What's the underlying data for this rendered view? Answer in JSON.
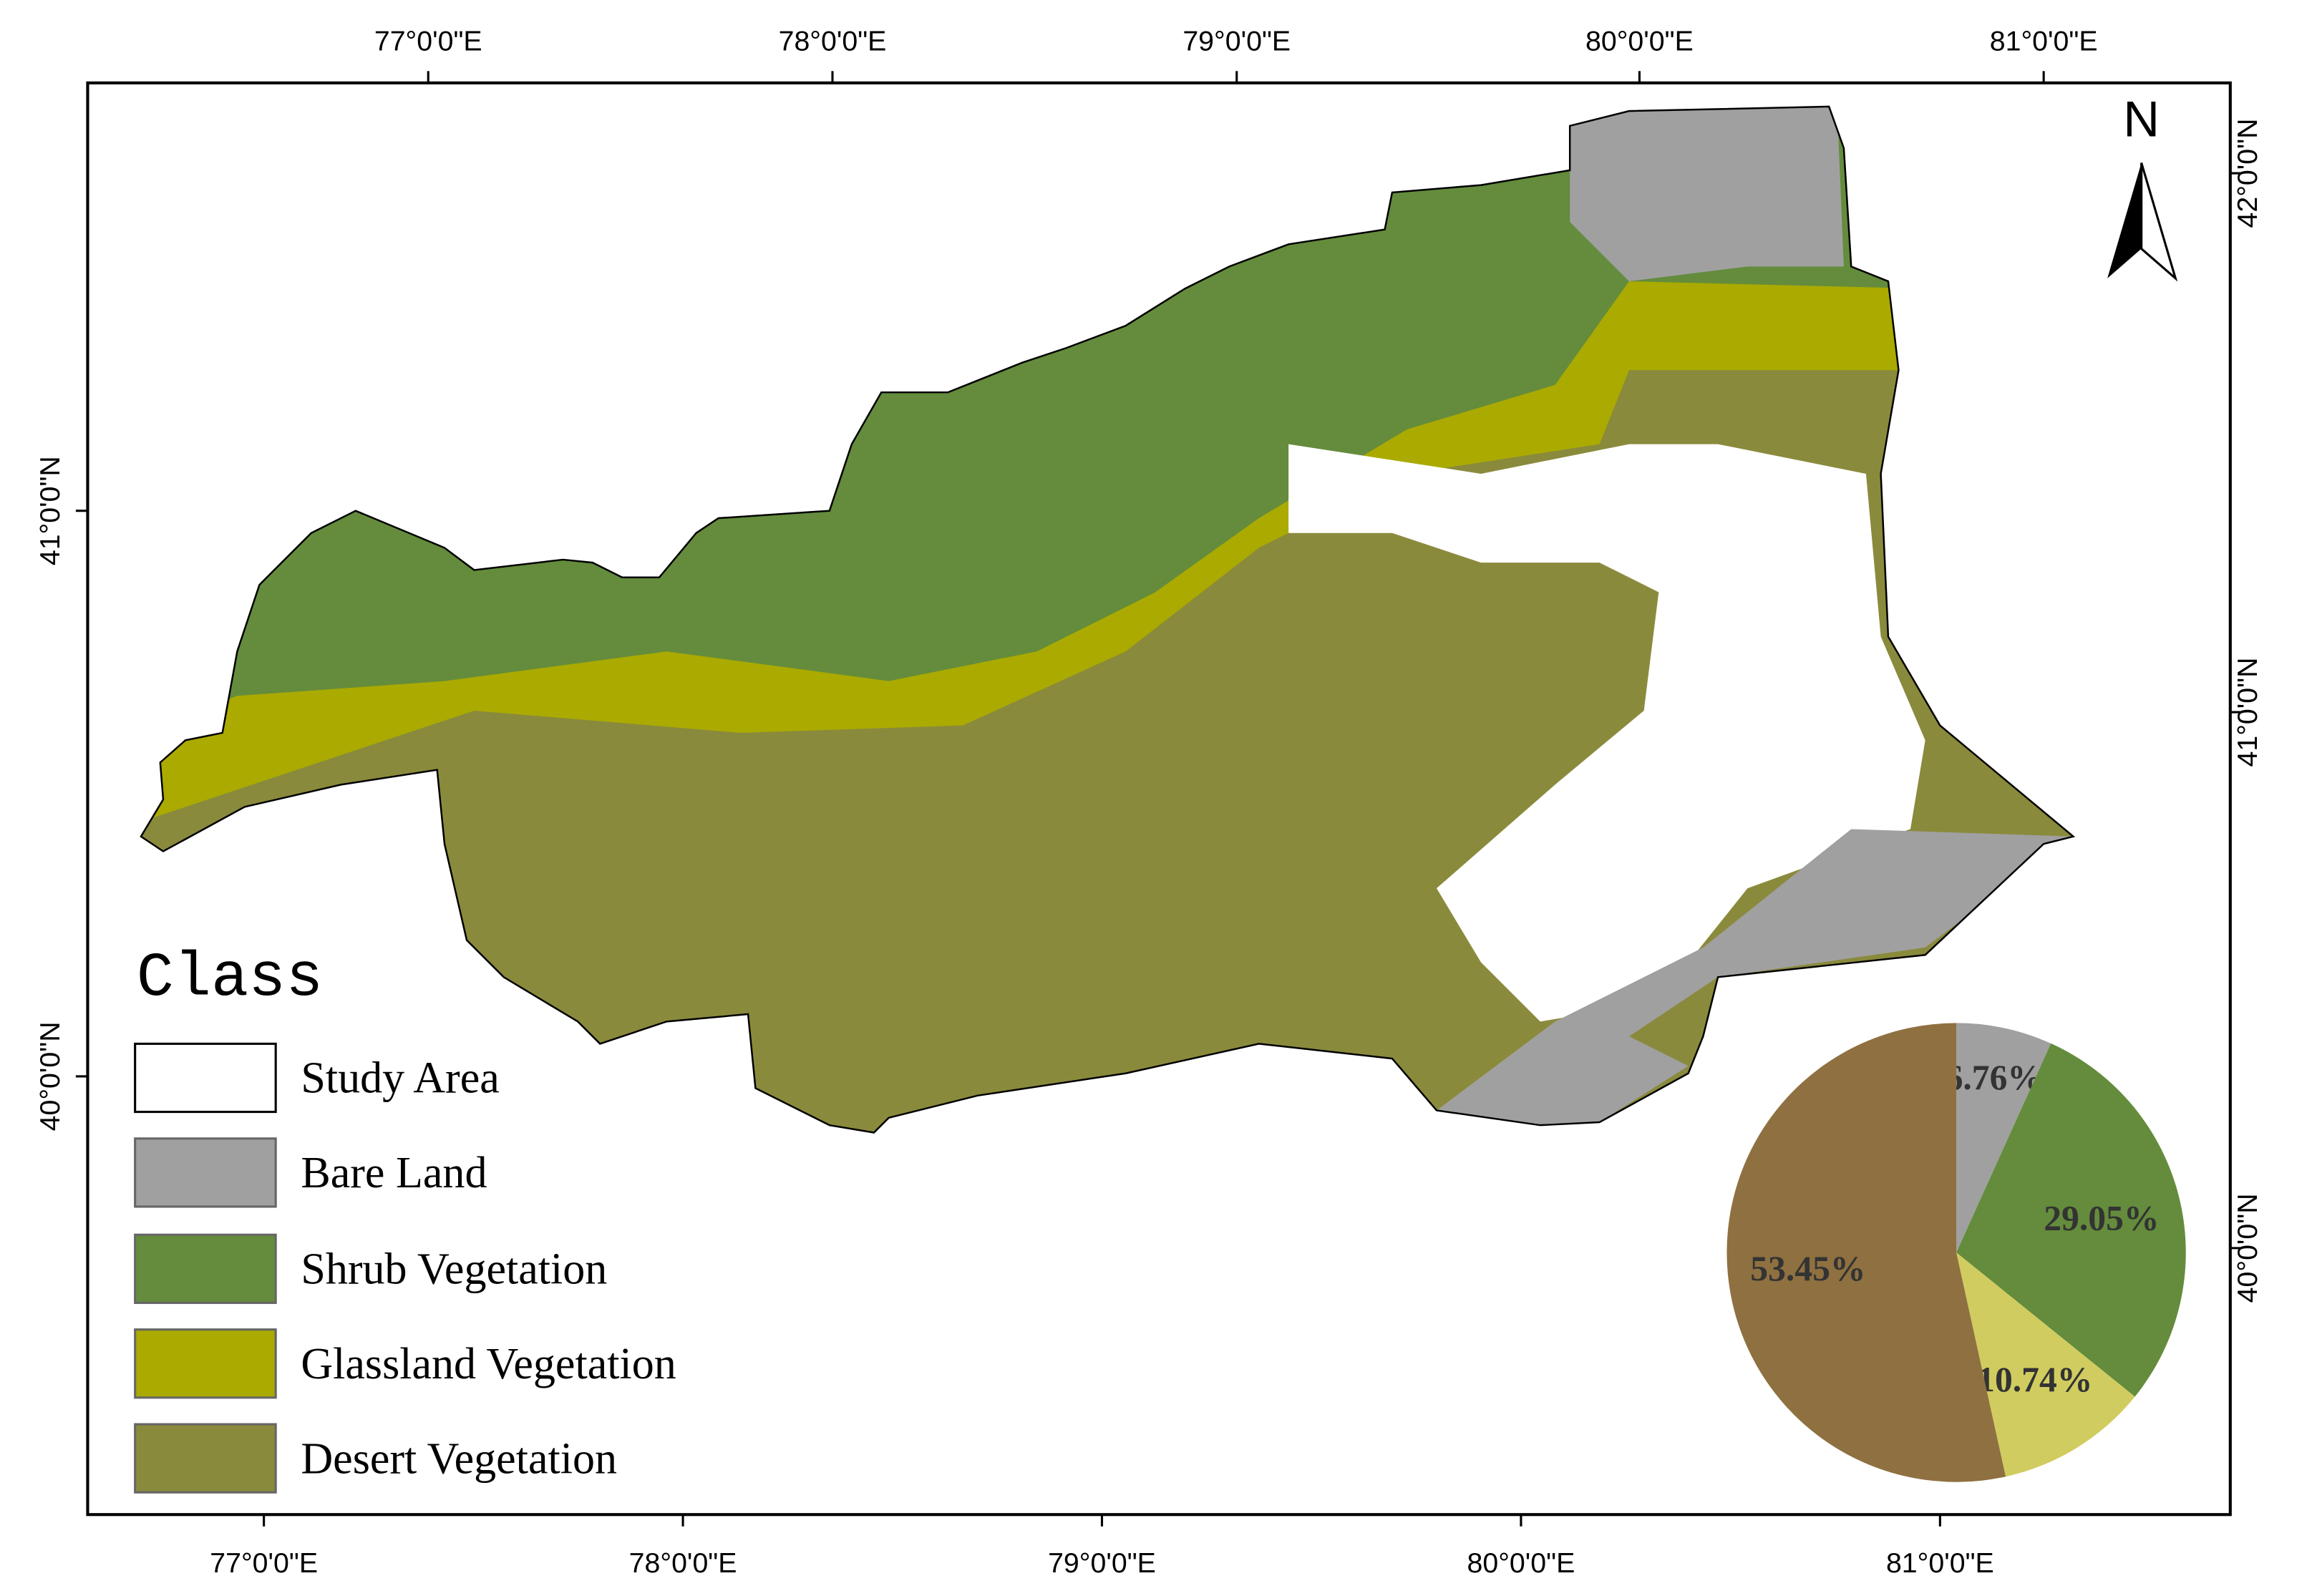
{
  "axes": {
    "top": [
      "77°0'0\"E",
      "78°0'0\"E",
      "79°0'0\"E",
      "80°0'0\"E",
      "81°0'0\"E"
    ],
    "bottom": [
      "77°0'0\"E",
      "78°0'0\"E",
      "79°0'0\"E",
      "80°0'0\"E",
      "81°0'0\"E"
    ],
    "left": [
      "41°0'0\"N",
      "40°0'0\"N"
    ],
    "right": [
      "42°0'0\"N",
      "41°0'0\"N",
      "40°0'0\"N"
    ]
  },
  "north_arrow": "N",
  "legend": {
    "title": "Class",
    "items": [
      {
        "label": "Study Area",
        "color": "#ffffff"
      },
      {
        "label": "Bare Land",
        "color": "#a0a0a0"
      },
      {
        "label": "Shrub Vegetation",
        "color": "#648c3c"
      },
      {
        "label": "Glassland Vegetation",
        "color": "#aaaa00"
      },
      {
        "label": "Desert Vegetation",
        "color": "#8a8a3c"
      }
    ]
  },
  "chart_data": {
    "type": "pie",
    "values": [
      6.76,
      29.05,
      10.74,
      53.45
    ],
    "value_labels": [
      "6.76%",
      "29.05%",
      "10.74%",
      "53.45%"
    ],
    "colors": [
      "#a0a0a0",
      "#648c3c",
      "#d0cc60",
      "#8f7040"
    ]
  }
}
